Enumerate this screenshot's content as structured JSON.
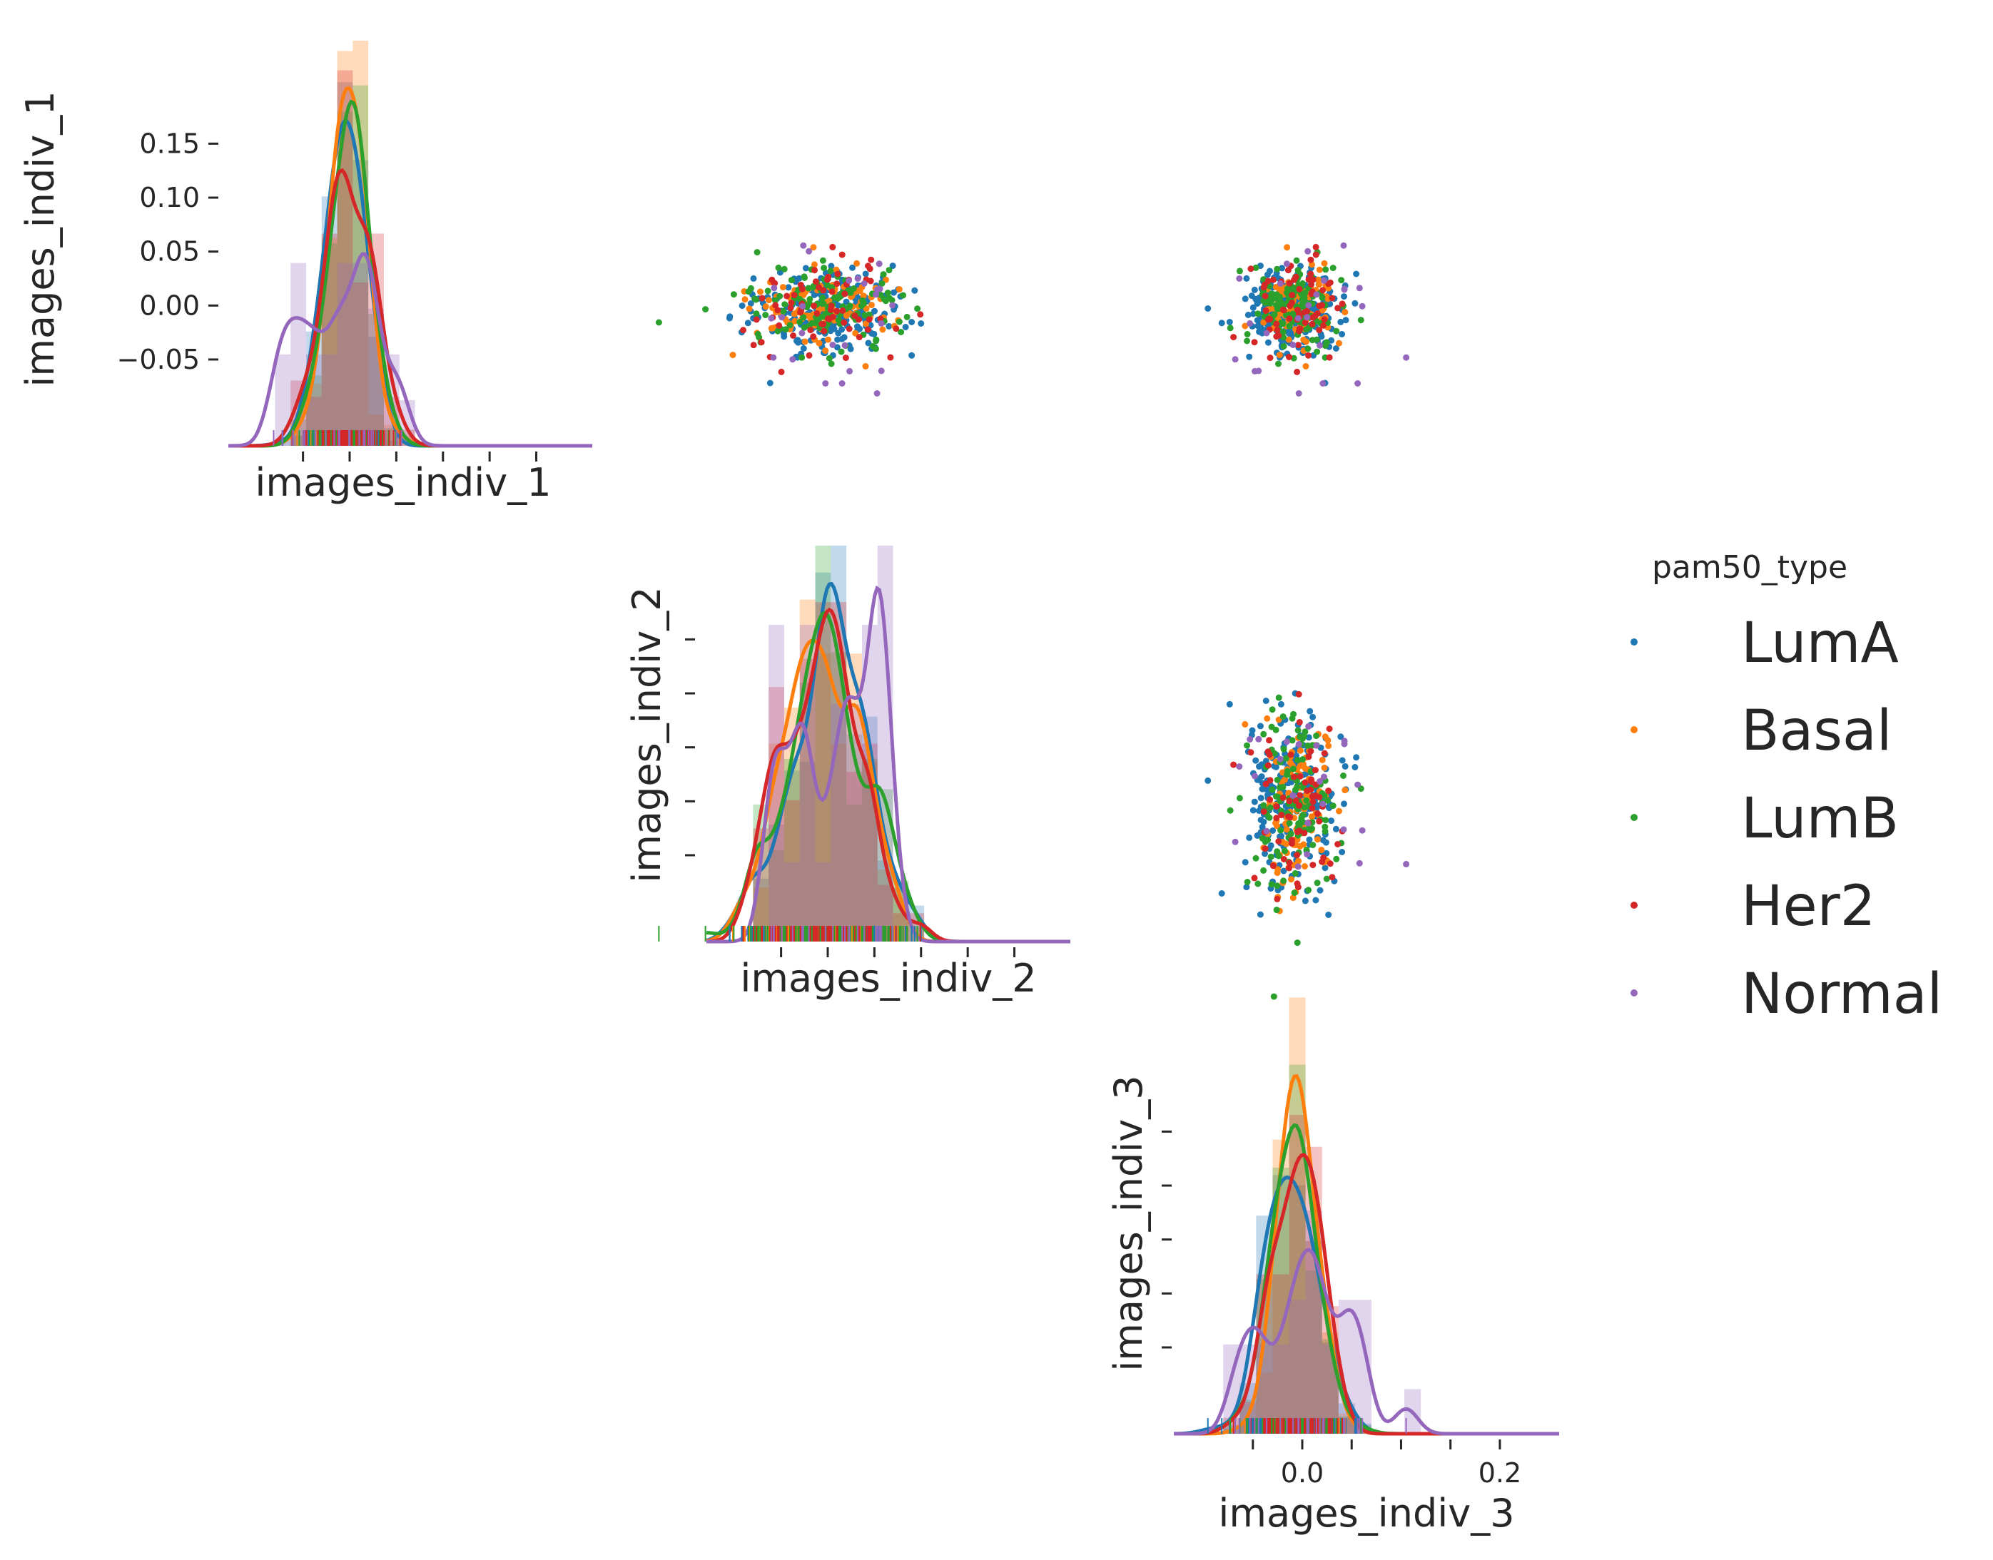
{
  "chart_data": {
    "type": "pairplot",
    "title": "",
    "variables": [
      "images_indiv_1",
      "images_indiv_2",
      "images_indiv_3"
    ],
    "hue_variable": "pam50_type",
    "legend": {
      "title": "pam50_type",
      "placement": "right",
      "entries": [
        {
          "name": "LumA",
          "color": "#1f77b4"
        },
        {
          "name": "Basal",
          "color": "#ff7f0e"
        },
        {
          "name": "LumB",
          "color": "#2ca02c"
        },
        {
          "name": "Her2",
          "color": "#d62728"
        },
        {
          "name": "Normal",
          "color": "#9467bd"
        }
      ]
    },
    "corner": "upper",
    "grid": false,
    "range": [
      -0.13,
      0.26
    ],
    "ticks": [
      -0.05,
      0.0,
      0.05,
      0.1,
      0.15,
      0.2
    ],
    "axis_1_ticks": [
      {
        "value": 0.15,
        "label": "0.15"
      },
      {
        "value": 0.1,
        "label": "0.10"
      },
      {
        "value": 0.05,
        "label": "0.05"
      },
      {
        "value": 0.0,
        "label": "0.00"
      },
      {
        "value": -0.05,
        "label": "−0.05"
      }
    ],
    "axis_3_ticks": [
      {
        "value": 0.0,
        "label": "0.0"
      },
      {
        "value": 0.2,
        "label": "0.2"
      }
    ],
    "xlabels": [
      "images_indiv_1",
      "images_indiv_2",
      "images_indiv_3"
    ],
    "ylabels": [
      "images_indiv_1",
      "images_indiv_2",
      "images_indiv_3"
    ],
    "distributions": {
      "images_indiv_1": [
        {
          "name": "LumA",
          "mean": -0.004,
          "sd": 0.02
        },
        {
          "name": "Basal",
          "mean": -0.005,
          "sd": 0.018
        },
        {
          "name": "LumB",
          "mean": -0.003,
          "sd": 0.022
        },
        {
          "name": "Her2",
          "mean": -0.002,
          "sd": 0.024
        },
        {
          "name": "Normal",
          "mean": -0.008,
          "sd": 0.033
        }
      ],
      "images_indiv_2": [
        {
          "name": "LumA",
          "mean": 0.0,
          "sd": 0.04
        },
        {
          "name": "Basal",
          "mean": 0.0,
          "sd": 0.04
        },
        {
          "name": "LumB",
          "mean": 0.0,
          "sd": 0.045
        },
        {
          "name": "Her2",
          "mean": 0.0,
          "sd": 0.042
        },
        {
          "name": "Normal",
          "mean": 0.0,
          "sd": 0.04
        }
      ],
      "images_indiv_3": [
        {
          "name": "LumA",
          "mean": -0.012,
          "sd": 0.024
        },
        {
          "name": "Basal",
          "mean": -0.005,
          "sd": 0.02
        },
        {
          "name": "LumB",
          "mean": -0.01,
          "sd": 0.022
        },
        {
          "name": "Her2",
          "mean": -0.012,
          "sd": 0.022
        },
        {
          "name": "Normal",
          "mean": 0.005,
          "sd": 0.045
        }
      ]
    },
    "n_points_per_category": [
      220,
      110,
      130,
      70,
      25
    ]
  }
}
